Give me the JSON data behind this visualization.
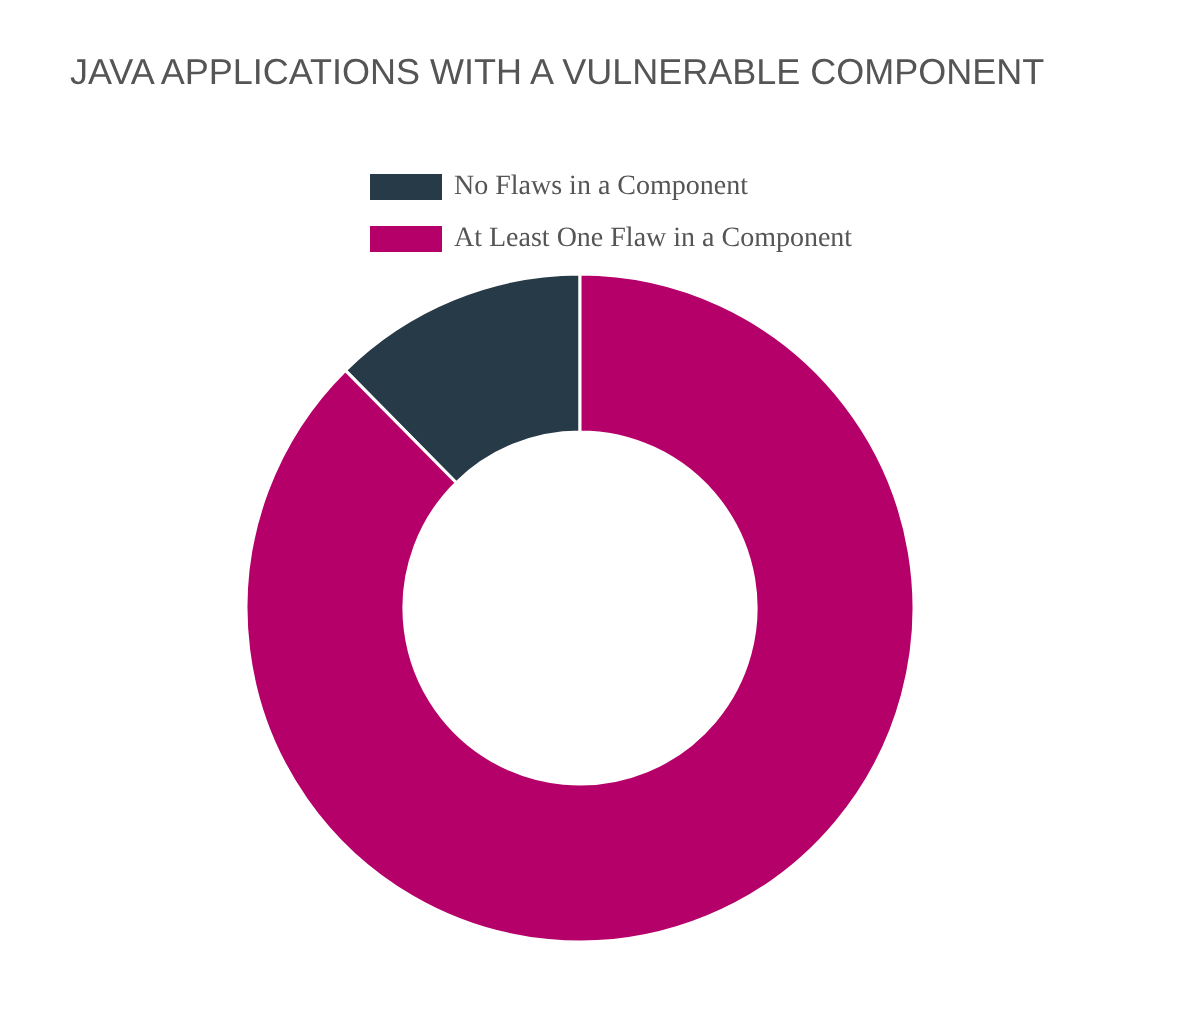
{
  "chart_data": {
    "type": "donut",
    "title": "JAVA APPLICATIONS WITH A VULNERABLE COMPONENT",
    "categories": [
      "No Flaws in a Component",
      "At Least One Flaw in a Component"
    ],
    "values": [
      12.4,
      87.6
    ],
    "colors": [
      "#263a47",
      "#b5006a"
    ],
    "legend": "top"
  }
}
